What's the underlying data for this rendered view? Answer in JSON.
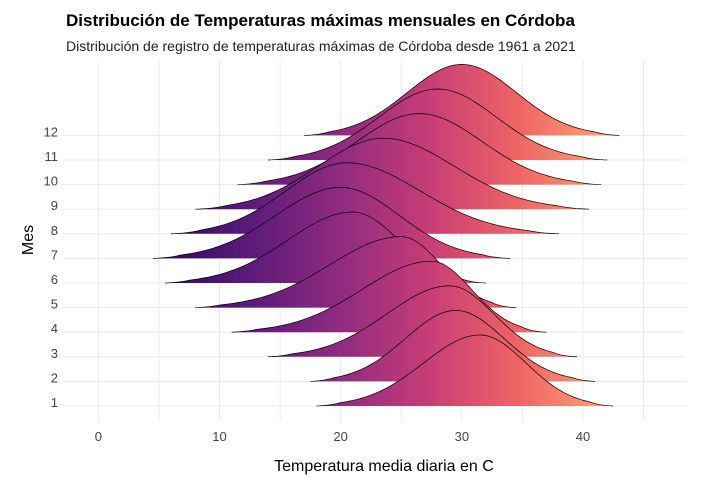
{
  "chart_data": {
    "type": "ridgeline",
    "title": "Distribución de Temperaturas máximas mensuales en Córdoba",
    "subtitle": "Distribución de registro de temperaturas máximas de Córdoba desde 1961 a 2021",
    "xlabel": "Temperatura media diaria en C",
    "ylabel": "Mes",
    "xlim": [
      -3,
      48.5
    ],
    "x_ticks": [
      0,
      10,
      20,
      30,
      40
    ],
    "grid": true,
    "legend": "none",
    "colors": {
      "gradient": [
        "#2b0a5e",
        "#5b1a7a",
        "#8f2a80",
        "#c63d77",
        "#ee6466",
        "#fca172"
      ],
      "gradient_range": [
        5,
        42
      ],
      "outline": "#000000",
      "grid": "#e6e6e6"
    },
    "series": [
      {
        "name": "1",
        "min": 18,
        "max": 42.5,
        "peak": 31.5
      },
      {
        "name": "2",
        "min": 17.5,
        "max": 41,
        "peak": 29.5
      },
      {
        "name": "3",
        "min": 14,
        "max": 39.5,
        "peak": 29
      },
      {
        "name": "4",
        "min": 11,
        "max": 37,
        "peak": 27.5
      },
      {
        "name": "5",
        "min": 8,
        "max": 34.5,
        "peak": 25
      },
      {
        "name": "6",
        "min": 5.5,
        "max": 32,
        "peak": 21
      },
      {
        "name": "7",
        "min": 4.5,
        "max": 34,
        "peak": 20
      },
      {
        "name": "8",
        "min": 6,
        "max": 38,
        "peak": 20.5
      },
      {
        "name": "9",
        "min": 8,
        "max": 40.5,
        "peak": 23.5
      },
      {
        "name": "10",
        "min": 11.5,
        "max": 41.5,
        "peak": 26.5
      },
      {
        "name": "11",
        "min": 14,
        "max": 42,
        "peak": 28
      },
      {
        "name": "12",
        "min": 17,
        "max": 43,
        "peak": 30
      }
    ]
  }
}
